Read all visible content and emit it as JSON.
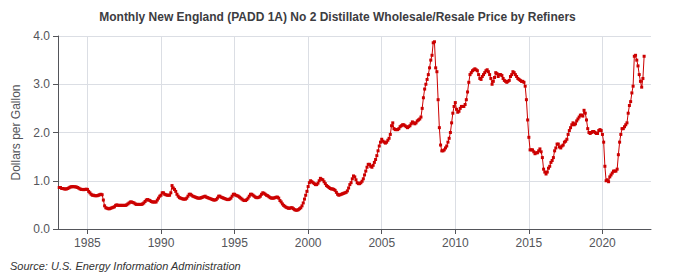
{
  "chart_data": {
    "type": "line",
    "title": "Monthly New England (PADD 1A) No 2 Distillate Wholesale/Resale Price by Refiners",
    "ylabel": "Dollars per Gallon",
    "annotations": [
      "Source: U.S. Energy Information Administration"
    ],
    "color": "#CC0000",
    "marker": "square",
    "line_style": "solid",
    "grid": true,
    "xlim": [
      1983.0,
      2023.3
    ],
    "xticks": [
      1985,
      1990,
      1995,
      2000,
      2005,
      2010,
      2015,
      2020
    ],
    "ylim": [
      0.0,
      4.0
    ],
    "yticks": [
      {
        "value": 0.0,
        "label": "0.0"
      },
      {
        "value": 1.0,
        "label": "1.0"
      },
      {
        "value": 2.0,
        "label": "2.0"
      },
      {
        "value": 3.0,
        "label": "3.0"
      },
      {
        "value": 4.0,
        "label": "4.0"
      }
    ],
    "x": [
      1983.083,
      1983.167,
      1983.25,
      1983.333,
      1983.417,
      1983.5,
      1983.583,
      1983.667,
      1983.75,
      1983.833,
      1983.917,
      1984.0,
      1984.083,
      1984.167,
      1984.25,
      1984.333,
      1984.417,
      1984.5,
      1984.583,
      1984.667,
      1984.75,
      1984.833,
      1984.917,
      1985.0,
      1985.083,
      1985.167,
      1985.25,
      1985.333,
      1985.417,
      1985.5,
      1985.583,
      1985.667,
      1985.75,
      1985.833,
      1985.917,
      1986.0,
      1986.083,
      1986.167,
      1986.25,
      1986.333,
      1986.417,
      1986.5,
      1986.583,
      1986.667,
      1986.75,
      1986.833,
      1986.917,
      1987.0,
      1987.083,
      1987.167,
      1987.25,
      1987.333,
      1987.417,
      1987.5,
      1987.583,
      1987.667,
      1987.75,
      1987.833,
      1987.917,
      1988.0,
      1988.083,
      1988.167,
      1988.25,
      1988.333,
      1988.417,
      1988.5,
      1988.583,
      1988.667,
      1988.75,
      1988.833,
      1988.917,
      1989.0,
      1989.083,
      1989.167,
      1989.25,
      1989.333,
      1989.417,
      1989.5,
      1989.583,
      1989.667,
      1989.75,
      1989.833,
      1989.917,
      1990.0,
      1990.083,
      1990.167,
      1990.25,
      1990.333,
      1990.417,
      1990.5,
      1990.583,
      1990.667,
      1990.75,
      1990.833,
      1990.917,
      1991.0,
      1991.083,
      1991.167,
      1991.25,
      1991.333,
      1991.417,
      1991.5,
      1991.583,
      1991.667,
      1991.75,
      1991.833,
      1991.917,
      1992.0,
      1992.083,
      1992.167,
      1992.25,
      1992.333,
      1992.417,
      1992.5,
      1992.583,
      1992.667,
      1992.75,
      1992.833,
      1992.917,
      1993.0,
      1993.083,
      1993.167,
      1993.25,
      1993.333,
      1993.417,
      1993.5,
      1993.583,
      1993.667,
      1993.75,
      1993.833,
      1993.917,
      1994.0,
      1994.083,
      1994.167,
      1994.25,
      1994.333,
      1994.417,
      1994.5,
      1994.583,
      1994.667,
      1994.75,
      1994.833,
      1994.917,
      1995.0,
      1995.083,
      1995.167,
      1995.25,
      1995.333,
      1995.417,
      1995.5,
      1995.583,
      1995.667,
      1995.75,
      1995.833,
      1995.917,
      1996.0,
      1996.083,
      1996.167,
      1996.25,
      1996.333,
      1996.417,
      1996.5,
      1996.583,
      1996.667,
      1996.75,
      1996.833,
      1996.917,
      1997.0,
      1997.083,
      1997.167,
      1997.25,
      1997.333,
      1997.417,
      1997.5,
      1997.583,
      1997.667,
      1997.75,
      1997.833,
      1997.917,
      1998.0,
      1998.083,
      1998.167,
      1998.25,
      1998.333,
      1998.417,
      1998.5,
      1998.583,
      1998.667,
      1998.75,
      1998.833,
      1998.917,
      1999.0,
      1999.083,
      1999.167,
      1999.25,
      1999.333,
      1999.417,
      1999.5,
      1999.583,
      1999.667,
      1999.75,
      1999.833,
      1999.917,
      2000.0,
      2000.083,
      2000.167,
      2000.25,
      2000.333,
      2000.417,
      2000.5,
      2000.583,
      2000.667,
      2000.75,
      2000.833,
      2000.917,
      2001.0,
      2001.083,
      2001.167,
      2001.25,
      2001.333,
      2001.417,
      2001.5,
      2001.583,
      2001.667,
      2001.75,
      2001.833,
      2001.917,
      2002.0,
      2002.083,
      2002.167,
      2002.25,
      2002.333,
      2002.417,
      2002.5,
      2002.583,
      2002.667,
      2002.75,
      2002.833,
      2002.917,
      2003.0,
      2003.083,
      2003.167,
      2003.25,
      2003.333,
      2003.417,
      2003.5,
      2003.583,
      2003.667,
      2003.75,
      2003.833,
      2003.917,
      2004.0,
      2004.083,
      2004.167,
      2004.25,
      2004.333,
      2004.417,
      2004.5,
      2004.583,
      2004.667,
      2004.75,
      2004.833,
      2004.917,
      2005.0,
      2005.083,
      2005.167,
      2005.25,
      2005.333,
      2005.417,
      2005.5,
      2005.583,
      2005.667,
      2005.75,
      2005.833,
      2005.917,
      2006.0,
      2006.083,
      2006.167,
      2006.25,
      2006.333,
      2006.417,
      2006.5,
      2006.583,
      2006.667,
      2006.75,
      2006.833,
      2006.917,
      2007.0,
      2007.083,
      2007.167,
      2007.25,
      2007.333,
      2007.417,
      2007.5,
      2007.583,
      2007.667,
      2007.75,
      2007.833,
      2007.917,
      2008.0,
      2008.083,
      2008.167,
      2008.25,
      2008.333,
      2008.417,
      2008.5,
      2008.583,
      2008.667,
      2008.75,
      2008.833,
      2008.917,
      2009.0,
      2009.083,
      2009.167,
      2009.25,
      2009.333,
      2009.417,
      2009.5,
      2009.583,
      2009.667,
      2009.75,
      2009.833,
      2009.917,
      2010.0,
      2010.083,
      2010.167,
      2010.25,
      2010.333,
      2010.417,
      2010.5,
      2010.583,
      2010.667,
      2010.75,
      2010.833,
      2010.917,
      2011.0,
      2011.083,
      2011.167,
      2011.25,
      2011.333,
      2011.417,
      2011.5,
      2011.583,
      2011.667,
      2011.75,
      2011.833,
      2011.917,
      2012.0,
      2012.083,
      2012.167,
      2012.25,
      2012.333,
      2012.417,
      2012.5,
      2012.583,
      2012.667,
      2012.75,
      2012.833,
      2012.917,
      2013.0,
      2013.083,
      2013.167,
      2013.25,
      2013.333,
      2013.417,
      2013.5,
      2013.583,
      2013.667,
      2013.75,
      2013.833,
      2013.917,
      2014.0,
      2014.083,
      2014.167,
      2014.25,
      2014.333,
      2014.417,
      2014.5,
      2014.583,
      2014.667,
      2014.75,
      2014.833,
      2014.917,
      2015.0,
      2015.083,
      2015.167,
      2015.25,
      2015.333,
      2015.417,
      2015.5,
      2015.583,
      2015.667,
      2015.75,
      2015.833,
      2015.917,
      2016.0,
      2016.083,
      2016.167,
      2016.25,
      2016.333,
      2016.417,
      2016.5,
      2016.583,
      2016.667,
      2016.75,
      2016.833,
      2016.917,
      2017.0,
      2017.083,
      2017.167,
      2017.25,
      2017.333,
      2017.417,
      2017.5,
      2017.583,
      2017.667,
      2017.75,
      2017.833,
      2017.917,
      2018.0,
      2018.083,
      2018.167,
      2018.25,
      2018.333,
      2018.417,
      2018.5,
      2018.583,
      2018.667,
      2018.75,
      2018.833,
      2018.917,
      2019.0,
      2019.083,
      2019.167,
      2019.25,
      2019.333,
      2019.417,
      2019.5,
      2019.583,
      2019.667,
      2019.75,
      2019.833,
      2019.917,
      2020.0,
      2020.083,
      2020.167,
      2020.25,
      2020.333,
      2020.417,
      2020.5,
      2020.583,
      2020.667,
      2020.75,
      2020.833,
      2020.917,
      2021.0,
      2021.083,
      2021.167,
      2021.25,
      2021.333,
      2021.417,
      2021.5,
      2021.583,
      2021.667,
      2021.75,
      2021.833,
      2021.917,
      2022.0,
      2022.083,
      2022.167,
      2022.25,
      2022.333,
      2022.417,
      2022.5,
      2022.583,
      2022.667,
      2022.75,
      2022.833
    ],
    "values": [
      0.86,
      0.86,
      0.84,
      0.84,
      0.83,
      0.83,
      0.83,
      0.84,
      0.855,
      0.87,
      0.875,
      0.88,
      0.875,
      0.875,
      0.87,
      0.86,
      0.845,
      0.83,
      0.82,
      0.82,
      0.815,
      0.82,
      0.825,
      0.82,
      0.78,
      0.75,
      0.72,
      0.7,
      0.7,
      0.69,
      0.69,
      0.69,
      0.7,
      0.71,
      0.72,
      0.71,
      0.6,
      0.48,
      0.44,
      0.43,
      0.42,
      0.42,
      0.43,
      0.44,
      0.45,
      0.46,
      0.49,
      0.5,
      0.49,
      0.49,
      0.49,
      0.49,
      0.49,
      0.49,
      0.49,
      0.5,
      0.52,
      0.54,
      0.56,
      0.56,
      0.55,
      0.54,
      0.52,
      0.51,
      0.51,
      0.51,
      0.51,
      0.51,
      0.52,
      0.54,
      0.57,
      0.6,
      0.61,
      0.6,
      0.59,
      0.57,
      0.56,
      0.56,
      0.56,
      0.56,
      0.6,
      0.64,
      0.68,
      0.7,
      0.75,
      0.75,
      0.72,
      0.71,
      0.7,
      0.7,
      0.7,
      0.75,
      0.9,
      0.85,
      0.82,
      0.78,
      0.72,
      0.68,
      0.65,
      0.64,
      0.63,
      0.62,
      0.62,
      0.62,
      0.64,
      0.68,
      0.72,
      0.72,
      0.7,
      0.68,
      0.67,
      0.66,
      0.65,
      0.64,
      0.64,
      0.64,
      0.65,
      0.66,
      0.67,
      0.68,
      0.66,
      0.65,
      0.64,
      0.63,
      0.62,
      0.61,
      0.6,
      0.6,
      0.61,
      0.64,
      0.68,
      0.68,
      0.66,
      0.65,
      0.64,
      0.63,
      0.62,
      0.61,
      0.61,
      0.62,
      0.64,
      0.68,
      0.72,
      0.72,
      0.7,
      0.69,
      0.68,
      0.66,
      0.64,
      0.62,
      0.6,
      0.59,
      0.59,
      0.61,
      0.64,
      0.68,
      0.72,
      0.72,
      0.7,
      0.68,
      0.66,
      0.65,
      0.65,
      0.66,
      0.68,
      0.72,
      0.75,
      0.74,
      0.72,
      0.7,
      0.69,
      0.67,
      0.65,
      0.64,
      0.64,
      0.64,
      0.65,
      0.66,
      0.66,
      0.64,
      0.59,
      0.56,
      0.52,
      0.49,
      0.47,
      0.45,
      0.44,
      0.43,
      0.43,
      0.44,
      0.44,
      0.42,
      0.4,
      0.39,
      0.39,
      0.4,
      0.42,
      0.44,
      0.48,
      0.54,
      0.62,
      0.7,
      0.78,
      0.88,
      0.96,
      1.0,
      0.98,
      0.96,
      0.94,
      0.92,
      0.92,
      0.95,
      1.0,
      1.05,
      1.03,
      1.02,
      0.98,
      0.94,
      0.9,
      0.88,
      0.86,
      0.84,
      0.83,
      0.83,
      0.82,
      0.8,
      0.76,
      0.72,
      0.7,
      0.71,
      0.72,
      0.73,
      0.74,
      0.75,
      0.76,
      0.79,
      0.85,
      0.92,
      0.96,
      1.04,
      1.1,
      1.08,
      1.02,
      0.96,
      0.94,
      0.94,
      0.96,
      0.99,
      1.04,
      1.12,
      1.2,
      1.28,
      1.34,
      1.34,
      1.3,
      1.28,
      1.32,
      1.38,
      1.44,
      1.52,
      1.62,
      1.72,
      1.8,
      1.86,
      1.82,
      1.8,
      1.78,
      1.8,
      1.84,
      1.88,
      1.96,
      2.14,
      2.2,
      2.08,
      2.06,
      2.06,
      2.06,
      2.08,
      2.12,
      2.14,
      2.16,
      2.16,
      2.14,
      2.12,
      2.1,
      2.12,
      2.14,
      2.18,
      2.22,
      2.2,
      2.18,
      2.2,
      2.24,
      2.26,
      2.28,
      2.32,
      2.5,
      2.72,
      2.9,
      3.0,
      3.1,
      3.2,
      3.34,
      3.5,
      3.6,
      3.86,
      3.88,
      3.34,
      3.26,
      2.68,
      2.1,
      1.74,
      1.62,
      1.62,
      1.64,
      1.68,
      1.72,
      1.8,
      1.88,
      2.0,
      2.2,
      2.4,
      2.54,
      2.62,
      2.48,
      2.42,
      2.44,
      2.5,
      2.54,
      2.54,
      2.54,
      2.58,
      2.68,
      2.84,
      3.04,
      3.2,
      3.24,
      3.28,
      3.3,
      3.32,
      3.3,
      3.28,
      3.2,
      3.12,
      3.1,
      3.16,
      3.2,
      3.24,
      3.28,
      3.3,
      3.26,
      3.2,
      3.12,
      3.0,
      3.06,
      3.14,
      3.24,
      3.22,
      3.16,
      3.2,
      3.2,
      3.18,
      3.12,
      3.08,
      3.06,
      3.04,
      3.06,
      3.08,
      3.16,
      3.2,
      3.26,
      3.24,
      3.2,
      3.16,
      3.12,
      3.1,
      3.08,
      3.06,
      3.06,
      3.04,
      2.96,
      2.68,
      2.26,
      1.9,
      1.64,
      1.64,
      1.64,
      1.6,
      1.56,
      1.58,
      1.58,
      1.62,
      1.66,
      1.6,
      1.48,
      1.24,
      1.18,
      1.14,
      1.18,
      1.26,
      1.3,
      1.38,
      1.42,
      1.48,
      1.62,
      1.68,
      1.76,
      1.76,
      1.7,
      1.68,
      1.72,
      1.74,
      1.8,
      1.82,
      1.86,
      1.96,
      2.04,
      2.1,
      2.16,
      2.2,
      2.16,
      2.18,
      2.24,
      2.28,
      2.32,
      2.36,
      2.36,
      2.34,
      2.46,
      2.4,
      2.26,
      2.08,
      2.0,
      1.98,
      2.0,
      2.02,
      2.02,
      2.0,
      1.98,
      1.98,
      2.04,
      2.06,
      2.04,
      1.96,
      1.8,
      1.3,
      1.0,
      1.02,
      0.98,
      1.08,
      1.12,
      1.16,
      1.2,
      1.2,
      1.2,
      1.24,
      1.54,
      1.8,
      1.96,
      2.08,
      2.08,
      2.12,
      2.16,
      2.2,
      2.4,
      2.56,
      2.64,
      2.82,
      2.96,
      3.58,
      3.6,
      3.5,
      3.38,
      3.2,
      3.06,
      2.94,
      3.12,
      3.58
    ]
  }
}
